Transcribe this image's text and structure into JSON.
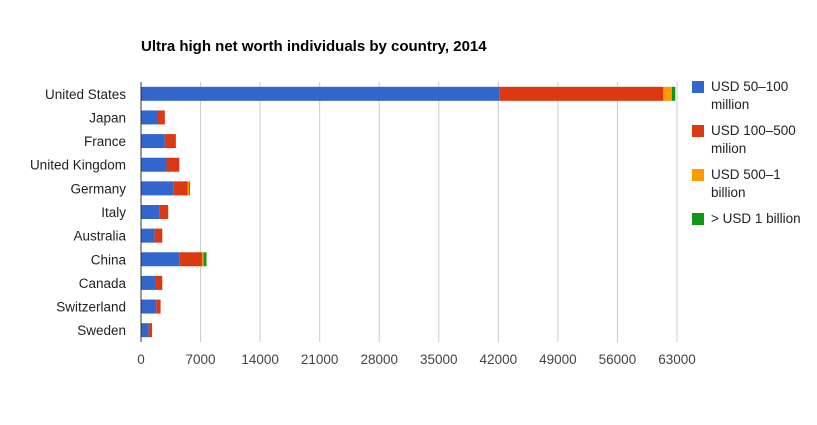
{
  "chart_data": {
    "type": "bar",
    "orientation": "horizontal",
    "stacked": true,
    "title": "Ultra high net worth individuals by country, 2014",
    "xlabel": "",
    "ylabel": "",
    "xlim": [
      0,
      63000
    ],
    "xticks": [
      "0",
      "7000",
      "14000",
      "21000",
      "28000",
      "35000",
      "42000",
      "49000",
      "56000",
      "63000"
    ],
    "grid": true,
    "legend_position": "right",
    "categories": [
      "United States",
      "Japan",
      "France",
      "United Kingdom",
      "Germany",
      "Italy",
      "Australia",
      "China",
      "Canada",
      "Switzerland",
      "Sweden"
    ],
    "series": [
      {
        "name": "USD 50–100 million",
        "color": "#3366cc",
        "values": [
          42100,
          2000,
          2800,
          3000,
          3800,
          2200,
          1600,
          4500,
          1700,
          1800,
          900
        ]
      },
      {
        "name": "USD 100–500 milion",
        "color": "#dc3912",
        "values": [
          19300,
          800,
          1300,
          1500,
          1700,
          1000,
          900,
          2700,
          800,
          500,
          400
        ]
      },
      {
        "name": "USD 500–1 billion",
        "color": "#ff9900",
        "values": [
          1000,
          0,
          0,
          0,
          150,
          0,
          0,
          150,
          0,
          0,
          0
        ]
      },
      {
        "name": "> USD 1 billion",
        "color": "#109618",
        "values": [
          400,
          0,
          0,
          0,
          100,
          0,
          0,
          350,
          0,
          0,
          0
        ]
      }
    ]
  }
}
